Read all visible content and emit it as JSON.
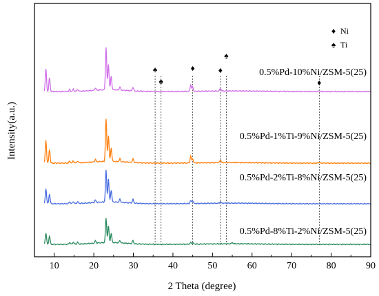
{
  "chart_data": {
    "type": "line",
    "xlabel": "2 Theta (degree)",
    "ylabel": "Intensity(a.u.)",
    "xlim": [
      5,
      90
    ],
    "x_ticks": [
      10,
      20,
      30,
      40,
      50,
      60,
      70,
      80,
      90
    ],
    "y_ticks_shown": false,
    "grid": false,
    "legend": {
      "placement": "top-right",
      "entries": [
        {
          "marker": "♦",
          "label": "Ni"
        },
        {
          "marker": "♠",
          "label": "Ti"
        }
      ]
    },
    "reference_lines": [
      {
        "x": 35.5,
        "phase": "Ti",
        "marker": "♠"
      },
      {
        "x": 37.0,
        "phase": "Ti",
        "marker": "♠"
      },
      {
        "x": 45.0,
        "phase": "Ni",
        "marker": "♦"
      },
      {
        "x": 52.0,
        "phase": "Ni",
        "marker": "♦"
      },
      {
        "x": 53.5,
        "phase": "Ti",
        "marker": "♠"
      },
      {
        "x": 77.0,
        "phase": "Ni",
        "marker": "♦"
      }
    ],
    "series": [
      {
        "name": "0.5%Pd-10%Ni/ZSM-5(25)",
        "color": "#d06ee8",
        "offset": 3,
        "peaks": [
          [
            7.9,
            75
          ],
          [
            8.8,
            45
          ],
          [
            13.9,
            6
          ],
          [
            14.8,
            7
          ],
          [
            15.9,
            6
          ],
          [
            20.4,
            8
          ],
          [
            23.1,
            140
          ],
          [
            23.7,
            85
          ],
          [
            24.4,
            45
          ],
          [
            26.6,
            10
          ],
          [
            29.9,
            12
          ],
          [
            44.5,
            22
          ],
          [
            45.0,
            14
          ],
          [
            52.0,
            9
          ],
          [
            77.0,
            3
          ]
        ]
      },
      {
        "name": "0.5%Pd-1%Ti-9%Ni/ZSM-5(25)",
        "color": "#ff7f0e",
        "offset": 2,
        "peaks": [
          [
            7.9,
            75
          ],
          [
            8.8,
            45
          ],
          [
            13.9,
            6
          ],
          [
            14.8,
            7
          ],
          [
            15.9,
            6
          ],
          [
            20.4,
            8
          ],
          [
            23.1,
            140
          ],
          [
            23.7,
            85
          ],
          [
            24.4,
            45
          ],
          [
            26.6,
            10
          ],
          [
            29.9,
            12
          ],
          [
            44.5,
            22
          ],
          [
            45.0,
            14
          ],
          [
            52.0,
            9
          ],
          [
            77.0,
            3
          ]
        ]
      },
      {
        "name": "0.5%Pd-2%Ti-8%Ni/ZSM-5(25)",
        "color": "#4a6ee0",
        "offset": 1,
        "peaks": [
          [
            7.9,
            50
          ],
          [
            8.8,
            32
          ],
          [
            13.9,
            6
          ],
          [
            14.8,
            7
          ],
          [
            15.9,
            6
          ],
          [
            20.4,
            8
          ],
          [
            23.1,
            105
          ],
          [
            23.7,
            75
          ],
          [
            24.4,
            40
          ],
          [
            26.6,
            10
          ],
          [
            29.9,
            12
          ],
          [
            44.5,
            10
          ],
          [
            45.0,
            10
          ],
          [
            52.0,
            5
          ]
        ]
      },
      {
        "name": "0.5%Pd-8%Ti-2%Ni/ZSM-5(25)",
        "color": "#2a8a5f",
        "offset": 0,
        "peaks": [
          [
            7.9,
            38
          ],
          [
            8.8,
            28
          ],
          [
            13.9,
            6
          ],
          [
            14.8,
            7
          ],
          [
            15.9,
            6
          ],
          [
            20.4,
            8
          ],
          [
            23.1,
            80
          ],
          [
            23.7,
            55
          ],
          [
            24.4,
            30
          ],
          [
            26.6,
            8
          ],
          [
            29.9,
            10
          ],
          [
            44.5,
            5
          ],
          [
            45.0,
            5
          ],
          [
            55.0,
            4
          ]
        ]
      }
    ]
  }
}
